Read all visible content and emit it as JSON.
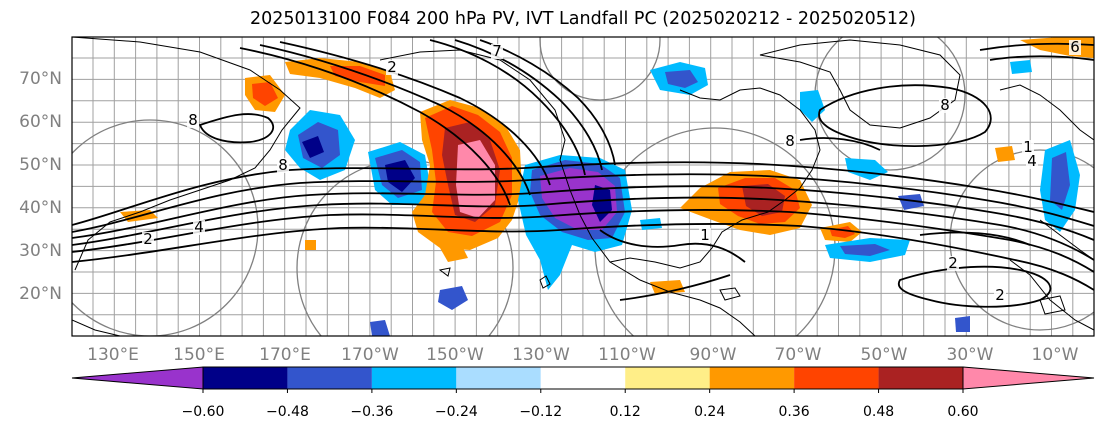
{
  "title": "2025013100 F084 200 hPa PV, IVT Landfall PC (2025020212 - 2025020512)",
  "map": {
    "lat_labels": [
      "70°N",
      "60°N",
      "50°N",
      "40°N",
      "30°N",
      "20°N"
    ],
    "lon_labels": [
      "130°E",
      "150°E",
      "170°E",
      "170°W",
      "150°W",
      "130°W",
      "110°W",
      "90°W",
      "70°W",
      "50°W",
      "30°W",
      "10°W"
    ],
    "contour_labels": [
      "8",
      "4",
      "2",
      "2",
      "8",
      "8",
      "8",
      "4",
      "2",
      "6",
      "1",
      "1",
      "2",
      "7"
    ]
  },
  "colorbar": {
    "tick_labels": [
      "−0.60",
      "−0.48",
      "−0.36",
      "−0.24",
      "−0.12",
      "0.12",
      "0.24",
      "0.36",
      "0.48",
      "0.60"
    ],
    "colors": [
      "#9933cc",
      "#000088",
      "#3355cc",
      "#00bbff",
      "#aaddff",
      "#ffffff",
      "#ffee88",
      "#ff9900",
      "#ff4400",
      "#aa2222",
      "#ff88aa"
    ],
    "under_color": "#9933cc",
    "over_color": "#ff88aa"
  },
  "colors": {
    "neg_dark": "#000088",
    "neg_mid": "#3355cc",
    "neg_light": "#00bbff",
    "neg_faint": "#aaddff",
    "pos_faint": "#ffee88",
    "pos_light": "#ff9900",
    "pos_mid": "#ff4400",
    "pos_dark": "#aa2222",
    "pos_max": "#ff88aa",
    "purple": "#9933cc"
  }
}
